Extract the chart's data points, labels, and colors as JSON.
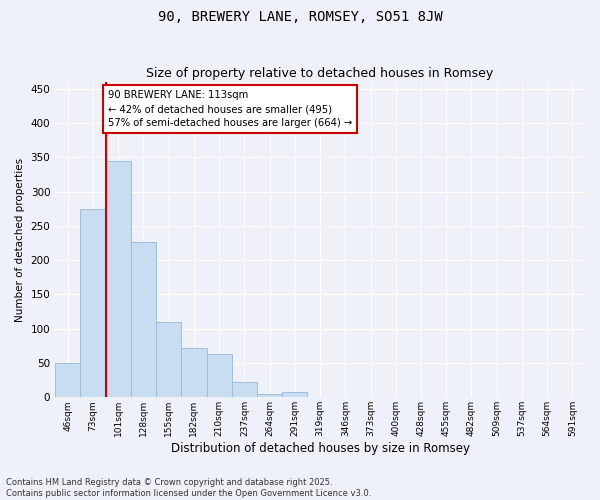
{
  "title": "90, BREWERY LANE, ROMSEY, SO51 8JW",
  "subtitle": "Size of property relative to detached houses in Romsey",
  "xlabel": "Distribution of detached houses by size in Romsey",
  "ylabel": "Number of detached properties",
  "categories": [
    "46sqm",
    "73sqm",
    "101sqm",
    "128sqm",
    "155sqm",
    "182sqm",
    "210sqm",
    "237sqm",
    "264sqm",
    "291sqm",
    "319sqm",
    "346sqm",
    "373sqm",
    "400sqm",
    "428sqm",
    "455sqm",
    "482sqm",
    "509sqm",
    "537sqm",
    "564sqm",
    "591sqm"
  ],
  "values": [
    50,
    275,
    345,
    227,
    110,
    72,
    63,
    22,
    5,
    8,
    1,
    0,
    0,
    1,
    0,
    0,
    0,
    0,
    0,
    0,
    0
  ],
  "bar_color": "#c9ddf2",
  "bar_edge_color": "#9ab8d8",
  "vline_color": "#cc0000",
  "annotation_text": "90 BREWERY LANE: 113sqm\n← 42% of detached houses are smaller (495)\n57% of semi-detached houses are larger (664) →",
  "annotation_box_color": "#ffffff",
  "annotation_box_edge": "#cc0000",
  "ylim": [
    0,
    460
  ],
  "yticks": [
    0,
    50,
    100,
    150,
    200,
    250,
    300,
    350,
    400,
    450
  ],
  "bg_color": "#eef2f8",
  "grid_color": "#ffffff",
  "footnote": "Contains HM Land Registry data © Crown copyright and database right 2025.\nContains public sector information licensed under the Open Government Licence v3.0."
}
